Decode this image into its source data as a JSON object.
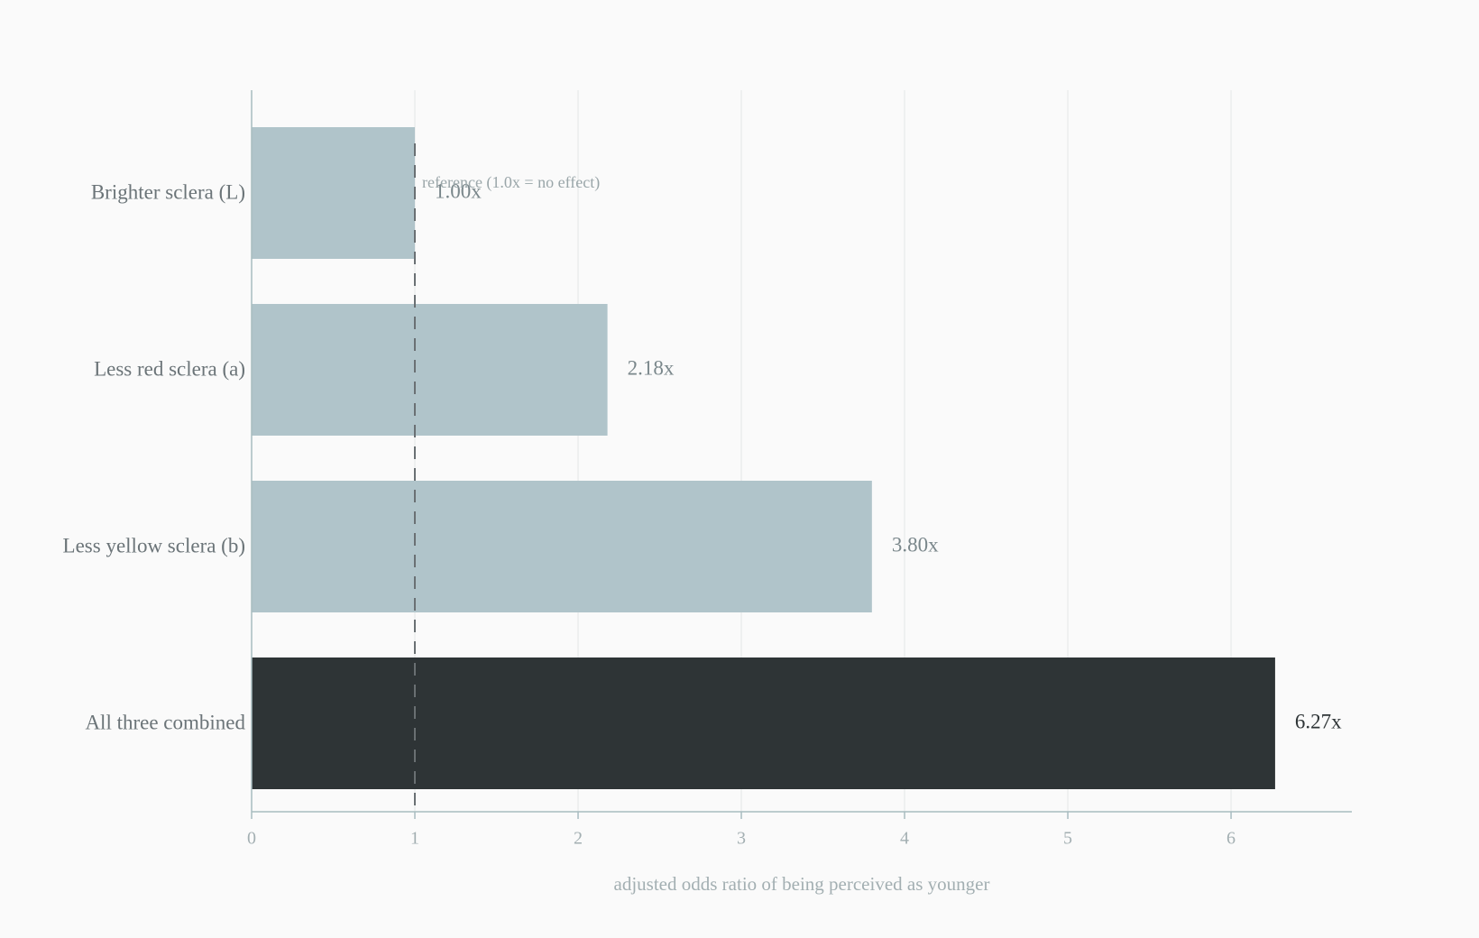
{
  "chart_data": {
    "type": "bar",
    "orientation": "horizontal",
    "categories": [
      "Brighter sclera (L)",
      "Less red sclera (a)",
      "Less yellow sclera (b)",
      "All three combined"
    ],
    "values": [
      1.0,
      2.18,
      3.8,
      6.27
    ],
    "value_labels": [
      "1.00x",
      "2.18x",
      "3.80x",
      "6.27x"
    ],
    "colors": [
      "#b0c4ca",
      "#b0c4ca",
      "#b0c4ca",
      "#2e3436"
    ],
    "xlim": [
      0,
      6.74
    ],
    "xticks": [
      0,
      1,
      2,
      3,
      4,
      5,
      6
    ],
    "x_label": "adjusted odds ratio of being perceived as younger",
    "grid": true,
    "reference_line": {
      "value": 1,
      "label": "reference (1.0x = no effect)"
    }
  }
}
